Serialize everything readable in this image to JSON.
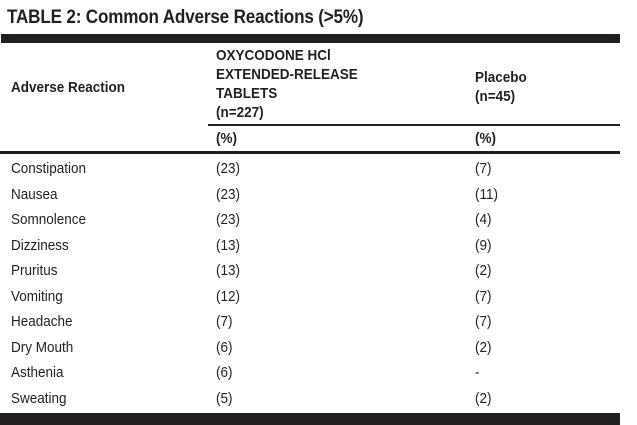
{
  "title": "TABLE 2: Common Adverse Reactions (>5%)",
  "table": {
    "headers": {
      "adverse_reaction": "Adverse Reaction",
      "oxycodone_lines": [
        "OXYCODONE HCl",
        "EXTENDED-RELEASE",
        "TABLETS",
        "(n=227)"
      ],
      "placebo_lines": [
        "Placebo",
        "(n=45)"
      ],
      "oxycodone_unit": "(%)",
      "placebo_unit": "(%)"
    },
    "rows": [
      {
        "reaction": "Constipation",
        "oxycodone": "(23)",
        "placebo": "(7)"
      },
      {
        "reaction": "Nausea",
        "oxycodone": "(23)",
        "placebo": "(11)"
      },
      {
        "reaction": "Somnolence",
        "oxycodone": "(23)",
        "placebo": "(4)"
      },
      {
        "reaction": "Dizziness",
        "oxycodone": "(13)",
        "placebo": "(9)"
      },
      {
        "reaction": "Pruritus",
        "oxycodone": "(13)",
        "placebo": "(2)"
      },
      {
        "reaction": "Vomiting",
        "oxycodone": "(12)",
        "placebo": "(7)"
      },
      {
        "reaction": "Headache",
        "oxycodone": "(7)",
        "placebo": "(7)"
      },
      {
        "reaction": "Dry Mouth",
        "oxycodone": "(6)",
        "placebo": "(2)"
      },
      {
        "reaction": "Asthenia",
        "oxycodone": "(6)",
        "placebo": "-"
      },
      {
        "reaction": "Sweating",
        "oxycodone": "(5)",
        "placebo": "(2)"
      }
    ]
  },
  "colors": {
    "ink": "#231f20",
    "background": "#ffffff"
  }
}
